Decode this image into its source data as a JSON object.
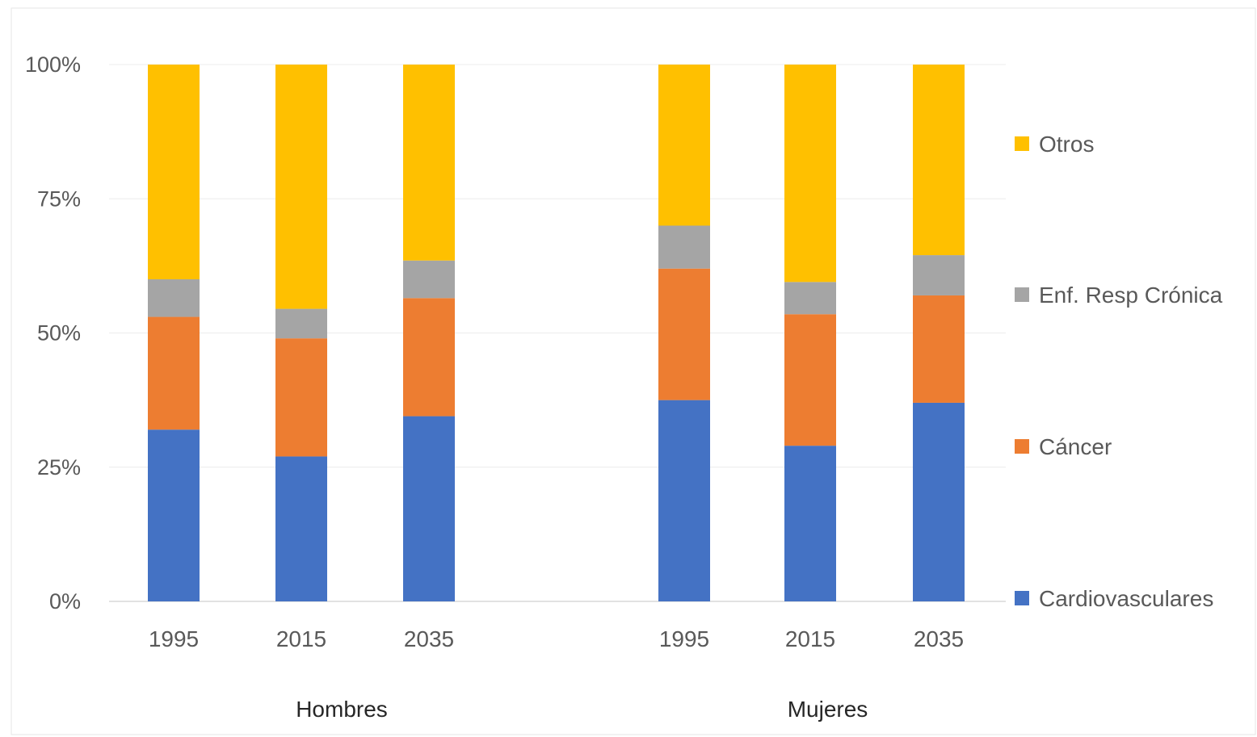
{
  "chart_data": {
    "type": "bar",
    "stacked": true,
    "percent": true,
    "groups": [
      {
        "label": "Hombres",
        "categories": [
          "1995",
          "2015",
          "2035"
        ]
      },
      {
        "label": "Mujeres",
        "categories": [
          "1995",
          "2015",
          "2035"
        ]
      }
    ],
    "series": [
      {
        "name": "Cardiovasculares",
        "color": "#4472C4",
        "values": [
          32,
          27,
          34.5,
          37.5,
          29,
          37
        ]
      },
      {
        "name": "Cáncer",
        "color": "#ED7D31",
        "values": [
          21,
          22,
          22,
          24.5,
          24.5,
          20
        ]
      },
      {
        "name": "Enf. Resp Crónica",
        "color": "#A5A5A5",
        "values": [
          7,
          5.5,
          7,
          8,
          6,
          7.5
        ]
      },
      {
        "name": "Otros",
        "color": "#FFC000",
        "values": [
          40,
          45.5,
          36.5,
          30,
          40.5,
          35.5
        ]
      }
    ],
    "yticks": [
      "0%",
      "25%",
      "50%",
      "75%",
      "100%"
    ],
    "ylim": [
      0,
      100
    ],
    "grid": true,
    "legend": "right",
    "title": "",
    "xlabel": "",
    "ylabel": ""
  }
}
